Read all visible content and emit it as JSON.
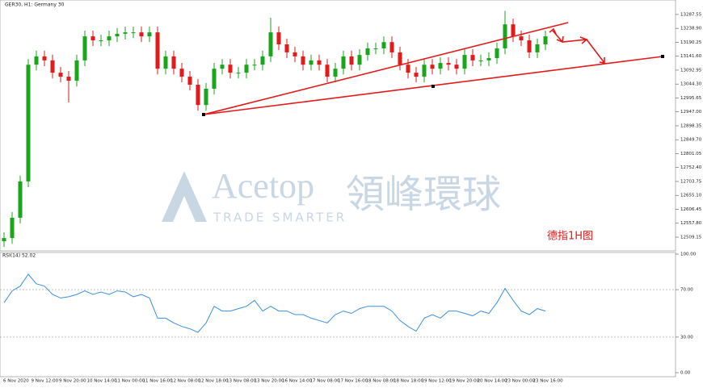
{
  "chart_data": [
    {
      "type": "candlestick",
      "title": "GER30, H1: Germany 30",
      "annotation": "德指1H图",
      "up_color": "#1aa51a",
      "down_color": "#e31a1a",
      "open": [
        12495,
        12506,
        12577,
        12704,
        13112,
        13141,
        13127,
        13084,
        13070,
        13056,
        13127,
        13211,
        13197,
        13197,
        13211,
        13220,
        13225,
        13225,
        13211,
        13225,
        13098,
        13141,
        13098,
        13070,
        13042,
        12971,
        13028,
        13098,
        13112,
        13084,
        13084,
        13112,
        13112,
        13141,
        13225,
        13183,
        13155,
        13141,
        13112,
        13127,
        13112,
        13070,
        13098,
        13141,
        13112,
        13146,
        13169,
        13169,
        13191,
        13155,
        13112,
        13084,
        13070,
        13112,
        13098,
        13118,
        13112,
        13098,
        13146,
        13127,
        13127,
        13135,
        13169,
        13253,
        13211,
        13197,
        13155,
        13183
      ],
      "high": [
        12526,
        12597,
        12724,
        13132,
        13161,
        13161,
        13147,
        13104,
        13090,
        13147,
        13231,
        13231,
        13217,
        13231,
        13240,
        13245,
        13245,
        13245,
        13245,
        13245,
        13161,
        13161,
        13118,
        13090,
        13062,
        13048,
        13118,
        13132,
        13132,
        13104,
        13132,
        13132,
        13161,
        13276,
        13245,
        13203,
        13175,
        13161,
        13147,
        13147,
        13132,
        13118,
        13161,
        13161,
        13166,
        13189,
        13189,
        13211,
        13211,
        13175,
        13132,
        13104,
        13132,
        13132,
        13138,
        13138,
        13132,
        13166,
        13166,
        13147,
        13155,
        13189,
        13300,
        13273,
        13231,
        13217,
        13203,
        13231
      ],
      "low": [
        12475,
        12486,
        12557,
        12684,
        13092,
        13107,
        13064,
        13050,
        12980,
        13036,
        13107,
        13177,
        13177,
        13177,
        13191,
        13200,
        13205,
        13191,
        13191,
        13078,
        13078,
        13078,
        13050,
        13022,
        12951,
        12951,
        13008,
        13078,
        13064,
        13064,
        13064,
        13092,
        13092,
        13121,
        13163,
        13135,
        13121,
        13092,
        13092,
        13092,
        13050,
        13050,
        13078,
        13092,
        13092,
        13126,
        13149,
        13149,
        13135,
        13092,
        13064,
        13050,
        13050,
        13078,
        13078,
        13092,
        13078,
        13078,
        13107,
        13107,
        13107,
        13115,
        13149,
        13191,
        13177,
        13135,
        13135,
        13163
      ],
      "close": [
        12506,
        12577,
        12704,
        13112,
        13141,
        13127,
        13084,
        13070,
        13056,
        13127,
        13211,
        13197,
        13197,
        13211,
        13220,
        13225,
        13225,
        13211,
        13225,
        13098,
        13141,
        13098,
        13070,
        13042,
        12971,
        13028,
        13098,
        13112,
        13084,
        13084,
        13112,
        13112,
        13141,
        13225,
        13183,
        13155,
        13141,
        13112,
        13127,
        13112,
        13070,
        13098,
        13141,
        13112,
        13146,
        13169,
        13169,
        13191,
        13155,
        13112,
        13084,
        13070,
        13112,
        13098,
        13118,
        13112,
        13098,
        13146,
        13127,
        13127,
        13135,
        13169,
        13253,
        13211,
        13197,
        13155,
        13183,
        13211
      ],
      "ylim": [
        12464,
        13324
      ],
      "yticks": [
        12509.15,
        {
          "value": 12557.8,
          "label": "12557.80"
        },
        12606.45,
        {
          "value": 12655.1,
          "label": "12655.10"
        },
        12703.75,
        {
          "value": 12752.4,
          "label": "12752.40"
        },
        12801.05,
        {
          "value": 12849.7,
          "label": "12849.70"
        },
        12898.35,
        {
          "value": 12947,
          "label": "12947.00"
        },
        12995.65,
        {
          "value": 13044.3,
          "label": "13044.30"
        },
        13092.95,
        {
          "value": 13141.6,
          "label": "13141.60"
        },
        13190.25,
        {
          "value": 13238.9,
          "label": "13238.90"
        },
        13287.55
      ],
      "x_labels": [
        "6 Nov 2020",
        "9 Nov 12:00",
        "9 Nov 20:00",
        "10 Nov 14:00",
        "11 Nov 00:00",
        "11 Nov 16:00",
        "12 Nov 08:00",
        "12 Nov 18:00",
        "13 Nov 08:00",
        "13 Nov 20:00",
        "16 Nov 14:00",
        "17 Nov 08:00",
        "17 Nov 16:00",
        "18 Nov 08:00",
        "18 Nov 18:00",
        "19 Nov 12:00",
        "19 Nov 20:00",
        "20 Nov 14:00",
        "23 Nov 00:00",
        "23 Nov 16:00"
      ]
    },
    {
      "type": "line",
      "title": "RSI(14) 52.02",
      "color": "#3d8fe0",
      "values": [
        59,
        69,
        73,
        83,
        75,
        73,
        66,
        63,
        64,
        66,
        69,
        66,
        68,
        66,
        69,
        68,
        64,
        66,
        63,
        46,
        46,
        42,
        39,
        37,
        34,
        42,
        56,
        52,
        52,
        54,
        56,
        61,
        52,
        56,
        52,
        52,
        49,
        49,
        46,
        44,
        42,
        49,
        52,
        50,
        54,
        56,
        56,
        56,
        52,
        44,
        39,
        35,
        46,
        49,
        46,
        52,
        52,
        50,
        48,
        52,
        50,
        59,
        71,
        61,
        52,
        49,
        54,
        52
      ],
      "ylim": [
        0,
        100
      ],
      "yticks": [
        {
          "value": 0,
          "label": "0.00"
        },
        {
          "value": 30,
          "label": "30.00"
        },
        {
          "value": 70,
          "label": "70.00"
        },
        {
          "value": 100,
          "label": "100.00"
        }
      ],
      "dashed_levels": [
        30,
        70
      ]
    }
  ],
  "watermark": {
    "brand": "Acetop",
    "chinese": "領峰環球",
    "slogan": "TRADE SMARTER"
  }
}
